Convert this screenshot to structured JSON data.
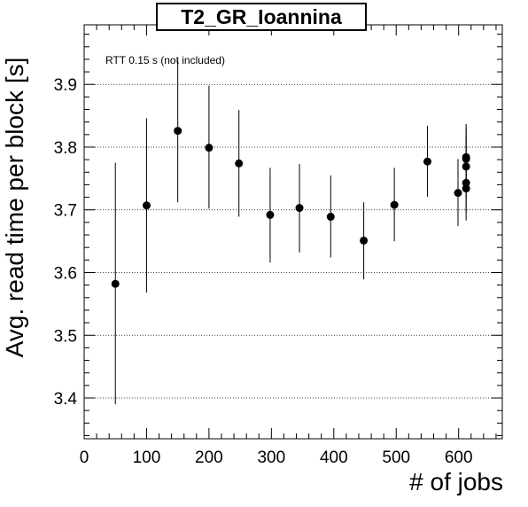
{
  "chart_data": {
    "type": "scatter",
    "title": "T2_GR_Ioannina",
    "xlabel": "# of jobs",
    "ylabel": "Avg. read time per block [s]",
    "annotation": "RTT 0.15 s (not included)",
    "xlim": [
      0,
      670
    ],
    "ylim": [
      3.335,
      3.995
    ],
    "xticks": [
      0,
      100,
      200,
      300,
      400,
      500,
      600
    ],
    "yticks": [
      3.4,
      3.5,
      3.6,
      3.7,
      3.8,
      3.9
    ],
    "grid": "horizontal-dotted",
    "points": [
      {
        "x": 50,
        "y": 3.582,
        "err_low": 3.39,
        "err_high": 3.775
      },
      {
        "x": 100,
        "y": 3.707,
        "err_low": 3.568,
        "err_high": 3.846
      },
      {
        "x": 150,
        "y": 3.826,
        "err_low": 3.712,
        "err_high": 3.939
      },
      {
        "x": 200,
        "y": 3.799,
        "err_low": 3.702,
        "err_high": 3.898
      },
      {
        "x": 248,
        "y": 3.774,
        "err_low": 3.689,
        "err_high": 3.859
      },
      {
        "x": 298,
        "y": 3.692,
        "err_low": 3.616,
        "err_high": 3.767
      },
      {
        "x": 345,
        "y": 3.703,
        "err_low": 3.632,
        "err_high": 3.773
      },
      {
        "x": 395,
        "y": 3.689,
        "err_low": 3.624,
        "err_high": 3.755
      },
      {
        "x": 448,
        "y": 3.651,
        "err_low": 3.589,
        "err_high": 3.712
      },
      {
        "x": 497,
        "y": 3.708,
        "err_low": 3.65,
        "err_high": 3.767
      },
      {
        "x": 550,
        "y": 3.777,
        "err_low": 3.721,
        "err_high": 3.834
      },
      {
        "x": 599,
        "y": 3.727,
        "err_low": 3.674,
        "err_high": 3.781
      },
      {
        "x": 612,
        "y": 3.784,
        "err_low": 3.731,
        "err_high": 3.837
      },
      {
        "x": 612,
        "y": 3.781,
        "err_low": 3.731,
        "err_high": 3.831
      },
      {
        "x": 612,
        "y": 3.769,
        "err_low": 3.718,
        "err_high": 3.82
      },
      {
        "x": 612,
        "y": 3.743,
        "err_low": 3.695,
        "err_high": 3.791
      },
      {
        "x": 612,
        "y": 3.734,
        "err_low": 3.683,
        "err_high": 3.785
      }
    ]
  }
}
